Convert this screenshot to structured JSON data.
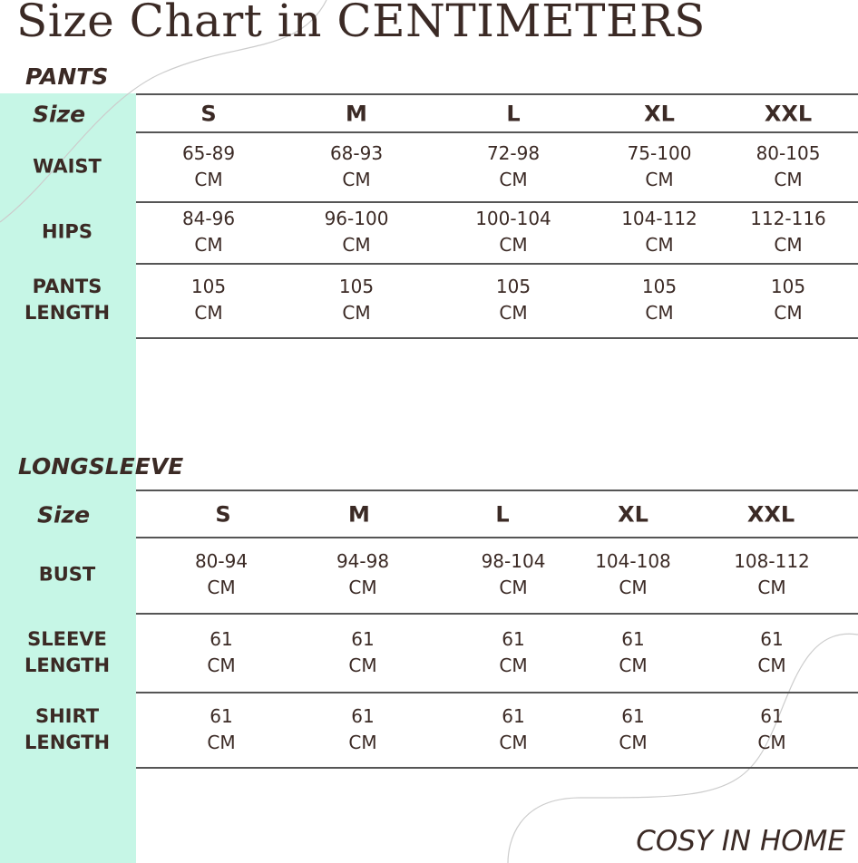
{
  "title": "Size Chart in CENTIMETERS",
  "tables": [
    {
      "title": "PANTS",
      "header": [
        "Size",
        "S",
        "M",
        "L",
        "XL",
        "XXL"
      ],
      "rows": [
        {
          "label": [
            "WAIST"
          ],
          "cells": [
            [
              "65-89",
              "CM"
            ],
            [
              "68-93",
              "CM"
            ],
            [
              "72-98",
              "CM"
            ],
            [
              "75-100",
              "CM"
            ],
            [
              "80-105",
              "CM"
            ]
          ]
        },
        {
          "label": [
            "HIPS"
          ],
          "cells": [
            [
              "84-96",
              "CM"
            ],
            [
              "96-100",
              "CM"
            ],
            [
              "100-104",
              "CM"
            ],
            [
              "104-112",
              "CM"
            ],
            [
              "112-116",
              "CM"
            ]
          ]
        },
        {
          "label": [
            "PANTS",
            "LENGTH"
          ],
          "cells": [
            [
              "105",
              "CM"
            ],
            [
              "105",
              "CM"
            ],
            [
              "105",
              "CM"
            ],
            [
              "105",
              "CM"
            ],
            [
              "105",
              "CM"
            ]
          ]
        }
      ]
    },
    {
      "title": "LONGSLEEVE",
      "header": [
        "Size",
        "S",
        "M",
        "L",
        "XL",
        "XXL"
      ],
      "rows": [
        {
          "label": [
            "BUST"
          ],
          "cells": [
            [
              "80-94",
              "CM"
            ],
            [
              "94-98",
              "CM"
            ],
            [
              "98-104",
              "CM"
            ],
            [
              "104-108",
              "CM"
            ],
            [
              "108-112",
              "CM"
            ]
          ]
        },
        {
          "label": [
            "SLEEVE",
            "LENGTH"
          ],
          "cells": [
            [
              "61",
              "CM"
            ],
            [
              "61",
              "CM"
            ],
            [
              "61",
              "CM"
            ],
            [
              "61",
              "CM"
            ],
            [
              "61",
              "CM"
            ]
          ]
        },
        {
          "label": [
            "SHIRT",
            "LENGTH"
          ],
          "cells": [
            [
              "61",
              "CM"
            ],
            [
              "61",
              "CM"
            ],
            [
              "61",
              "CM"
            ],
            [
              "61",
              "CM"
            ],
            [
              "61",
              "CM"
            ]
          ]
        }
      ]
    }
  ],
  "footer": "COSY IN HOME"
}
